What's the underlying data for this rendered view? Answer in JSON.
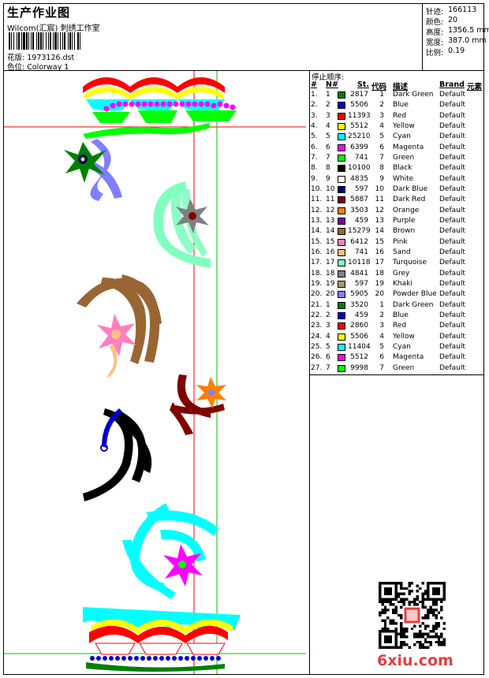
{
  "header": {
    "title": "生产作业图",
    "subtitle": "Wilcom(汇宸) 刺绣工作室",
    "design_label": "花版:",
    "design_value": "1973126.dst",
    "colorway_label": "色位:",
    "colorway_value": "Colorway 1"
  },
  "stats": [
    {
      "label": "针迹:",
      "value": "166113"
    },
    {
      "label": "颜色:",
      "value": "20"
    },
    {
      "label": "高度:",
      "value": "1356.5 mm"
    },
    {
      "label": "宽度:",
      "value": "387.0 mm"
    },
    {
      "label": "比例:",
      "value": "0.19"
    }
  ],
  "stop_table": {
    "title": "停止顺序:",
    "headers": {
      "hash": "#",
      "n": "N#",
      "st": "St.",
      "code": "代码",
      "desc": "描述",
      "brand": "Brand",
      "element": "元素"
    },
    "rows": [
      {
        "hash": "1.",
        "n": "1",
        "color": "#008000",
        "st": "2817",
        "code": "1",
        "desc": "Dark Green",
        "brand": "Default"
      },
      {
        "hash": "2.",
        "n": "2",
        "color": "#0000cc",
        "st": "5506",
        "code": "2",
        "desc": "Blue",
        "brand": "Default"
      },
      {
        "hash": "3.",
        "n": "3",
        "color": "#ff0000",
        "st": "11393",
        "code": "3",
        "desc": "Red",
        "brand": "Default"
      },
      {
        "hash": "4.",
        "n": "4",
        "color": "#ffff00",
        "st": "5512",
        "code": "4",
        "desc": "Yellow",
        "brand": "Default"
      },
      {
        "hash": "5.",
        "n": "5",
        "color": "#00ffff",
        "st": "25210",
        "code": "5",
        "desc": "Cyan",
        "brand": "Default"
      },
      {
        "hash": "6.",
        "n": "6",
        "color": "#ff00ff",
        "st": "6399",
        "code": "6",
        "desc": "Magenta",
        "brand": "Default"
      },
      {
        "hash": "7.",
        "n": "7",
        "color": "#00ff00",
        "st": "741",
        "code": "7",
        "desc": "Green",
        "brand": "Default"
      },
      {
        "hash": "8.",
        "n": "8",
        "color": "#000000",
        "st": "10100",
        "code": "8",
        "desc": "Black",
        "brand": "Default"
      },
      {
        "hash": "9.",
        "n": "9",
        "color": "#ffffff",
        "st": "4835",
        "code": "9",
        "desc": "White",
        "brand": "Default"
      },
      {
        "hash": "10.",
        "n": "10",
        "color": "#000080",
        "st": "597",
        "code": "10",
        "desc": "Dark Blue",
        "brand": "Default"
      },
      {
        "hash": "11.",
        "n": "11",
        "color": "#800000",
        "st": "5887",
        "code": "11",
        "desc": "Dark Red",
        "brand": "Default"
      },
      {
        "hash": "12.",
        "n": "12",
        "color": "#ff8000",
        "st": "3503",
        "code": "12",
        "desc": "Orange",
        "brand": "Default"
      },
      {
        "hash": "13.",
        "n": "13",
        "color": "#8000a0",
        "st": "459",
        "code": "13",
        "desc": "Purple",
        "brand": "Default"
      },
      {
        "hash": "14.",
        "n": "14",
        "color": "#996633",
        "st": "15279",
        "code": "14",
        "desc": "Brown",
        "brand": "Default"
      },
      {
        "hash": "15.",
        "n": "15",
        "color": "#ff80c0",
        "st": "6412",
        "code": "15",
        "desc": "Pink",
        "brand": "Default"
      },
      {
        "hash": "16.",
        "n": "16",
        "color": "#ffc080",
        "st": "741",
        "code": "16",
        "desc": "Sand",
        "brand": "Default"
      },
      {
        "hash": "17.",
        "n": "17",
        "color": "#80ffc0",
        "st": "10118",
        "code": "17",
        "desc": "Turquoise",
        "brand": "Default"
      },
      {
        "hash": "18.",
        "n": "18",
        "color": "#808080",
        "st": "4841",
        "code": "18",
        "desc": "Grey",
        "brand": "Default"
      },
      {
        "hash": "19.",
        "n": "19",
        "color": "#a09870",
        "st": "597",
        "code": "19",
        "desc": "Khaki",
        "brand": "Default"
      },
      {
        "hash": "20.",
        "n": "20",
        "color": "#8080ff",
        "st": "5905",
        "code": "20",
        "desc": "Powder Blue",
        "brand": "Default"
      },
      {
        "hash": "21.",
        "n": "1",
        "color": "#008000",
        "st": "3520",
        "code": "1",
        "desc": "Dark Green",
        "brand": "Default"
      },
      {
        "hash": "22.",
        "n": "2",
        "color": "#0000cc",
        "st": "459",
        "code": "2",
        "desc": "Blue",
        "brand": "Default"
      },
      {
        "hash": "23.",
        "n": "3",
        "color": "#ff0000",
        "st": "2860",
        "code": "3",
        "desc": "Red",
        "brand": "Default"
      },
      {
        "hash": "24.",
        "n": "4",
        "color": "#ffff00",
        "st": "5506",
        "code": "4",
        "desc": "Yellow",
        "brand": "Default"
      },
      {
        "hash": "25.",
        "n": "5",
        "color": "#00ffff",
        "st": "11404",
        "code": "5",
        "desc": "Cyan",
        "brand": "Default"
      },
      {
        "hash": "26.",
        "n": "6",
        "color": "#ff00ff",
        "st": "5512",
        "code": "6",
        "desc": "Magenta",
        "brand": "Default"
      },
      {
        "hash": "27.",
        "n": "7",
        "color": "#00ff00",
        "st": "9998",
        "code": "7",
        "desc": "Green",
        "brand": "Default"
      }
    ]
  },
  "watermark": {
    "logo_text": "6xiu.com"
  },
  "colors": {
    "red_guide": "#ff0000",
    "green_guide": "#00c000",
    "logo": "#e24040"
  }
}
